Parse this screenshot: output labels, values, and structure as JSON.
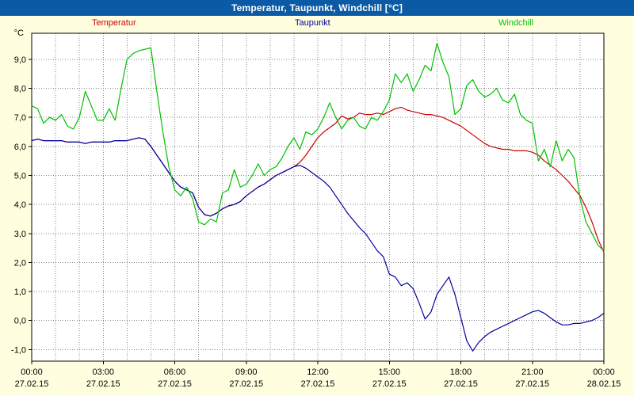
{
  "window": {
    "title": "Temperatur, Taupunkt, Windchill [°C]"
  },
  "colors": {
    "titlebar_bg": "#0b5aa5",
    "titlebar_text": "#ffffff",
    "background": "#ffffe0",
    "plot_background": "#ffffff",
    "grid": "#848484",
    "axis": "#000000",
    "temperatur": "#cc0000",
    "taupunkt": "#0000a0",
    "windchill": "#00c000"
  },
  "chart_data": {
    "type": "line",
    "title": "Temperatur, Taupunkt, Windchill [°C]",
    "grid": "dotted; vertical every hour, horizontal every 1 °C",
    "legend_position": "top, outside plot (Temperatur left red, Taupunkt center blue, Windchill right green)",
    "x_axis": {
      "min_hour": 0,
      "max_hour": 24,
      "step_hours": 0.25,
      "minor_grid_hours": 1,
      "ticks": [
        {
          "hour": 0,
          "time": "00:00",
          "date": "27.02.15"
        },
        {
          "hour": 3,
          "time": "03:00",
          "date": "27.02.15"
        },
        {
          "hour": 6,
          "time": "06:00",
          "date": "27.02.15"
        },
        {
          "hour": 9,
          "time": "09:00",
          "date": "27.02.15"
        },
        {
          "hour": 12,
          "time": "12:00",
          "date": "27.02.15"
        },
        {
          "hour": 15,
          "time": "15:00",
          "date": "27.02.15"
        },
        {
          "hour": 18,
          "time": "18:00",
          "date": "27.02.15"
        },
        {
          "hour": 21,
          "time": "21:00",
          "date": "27.02.15"
        },
        {
          "hour": 24,
          "time": "00:00",
          "date": "28.02.15"
        }
      ]
    },
    "y_axis": {
      "unit_label": "°C",
      "min": -1.4,
      "max": 9.9,
      "ticks": [
        {
          "value": 9,
          "label": "9,0"
        },
        {
          "value": 8,
          "label": "8,0"
        },
        {
          "value": 7,
          "label": "7,0"
        },
        {
          "value": 6,
          "label": "6,0"
        },
        {
          "value": 5,
          "label": "5,0"
        },
        {
          "value": 4,
          "label": "4,0"
        },
        {
          "value": 3,
          "label": "3,0"
        },
        {
          "value": 2,
          "label": "2,0"
        },
        {
          "value": 1,
          "label": "1,0"
        },
        {
          "value": 0,
          "label": "0,0"
        },
        {
          "value": -1,
          "label": "-1,0"
        }
      ]
    },
    "series": [
      {
        "name": "Temperatur",
        "color": "#cc0000",
        "values": [
          6.2,
          6.25,
          6.2,
          6.2,
          6.2,
          6.2,
          6.15,
          6.15,
          6.15,
          6.1,
          6.15,
          6.15,
          6.15,
          6.15,
          6.2,
          6.2,
          6.2,
          6.25,
          6.3,
          6.25,
          6.0,
          5.7,
          5.4,
          5.1,
          4.8,
          4.6,
          4.5,
          4.4,
          3.9,
          3.65,
          3.6,
          3.7,
          3.85,
          3.95,
          4.0,
          4.1,
          4.3,
          4.45,
          4.6,
          4.7,
          4.85,
          5.0,
          5.1,
          5.2,
          5.3,
          5.45,
          5.7,
          6.0,
          6.3,
          6.5,
          6.65,
          6.8,
          7.05,
          6.95,
          7.0,
          7.15,
          7.1,
          7.1,
          7.15,
          7.1,
          7.2,
          7.3,
          7.35,
          7.25,
          7.2,
          7.15,
          7.1,
          7.1,
          7.05,
          7.0,
          6.9,
          6.8,
          6.7,
          6.55,
          6.4,
          6.25,
          6.1,
          6.0,
          5.95,
          5.9,
          5.9,
          5.85,
          5.85,
          5.85,
          5.8,
          5.7,
          5.5,
          5.35,
          5.2,
          5.0,
          4.8,
          4.55,
          4.3,
          3.9,
          3.4,
          2.8,
          2.35
        ]
      },
      {
        "name": "Taupunkt",
        "color": "#0000a0",
        "values": [
          6.2,
          6.25,
          6.2,
          6.2,
          6.2,
          6.2,
          6.15,
          6.15,
          6.15,
          6.1,
          6.15,
          6.15,
          6.15,
          6.15,
          6.2,
          6.2,
          6.2,
          6.25,
          6.3,
          6.25,
          6.0,
          5.7,
          5.4,
          5.1,
          4.8,
          4.6,
          4.5,
          4.4,
          3.9,
          3.65,
          3.6,
          3.7,
          3.85,
          3.95,
          4.0,
          4.1,
          4.3,
          4.45,
          4.6,
          4.7,
          4.85,
          5.0,
          5.1,
          5.2,
          5.3,
          5.35,
          5.25,
          5.1,
          4.95,
          4.8,
          4.6,
          4.3,
          4.0,
          3.7,
          3.45,
          3.2,
          3.0,
          2.7,
          2.4,
          2.2,
          1.6,
          1.5,
          1.2,
          1.3,
          1.1,
          0.6,
          0.05,
          0.3,
          0.9,
          1.2,
          1.5,
          0.9,
          0.1,
          -0.7,
          -1.05,
          -0.75,
          -0.55,
          -0.4,
          -0.3,
          -0.2,
          -0.1,
          0.0,
          0.1,
          0.2,
          0.3,
          0.35,
          0.25,
          0.1,
          -0.05,
          -0.15,
          -0.15,
          -0.1,
          -0.1,
          -0.05,
          0.0,
          0.1,
          0.25
        ]
      },
      {
        "name": "Windchill",
        "color": "#00c000",
        "values": [
          7.4,
          7.3,
          6.8,
          7.0,
          6.9,
          7.1,
          6.7,
          6.6,
          7.0,
          7.9,
          7.4,
          6.9,
          6.9,
          7.3,
          6.9,
          8.0,
          9.0,
          9.2,
          9.3,
          9.35,
          9.4,
          7.9,
          6.5,
          5.3,
          4.5,
          4.3,
          4.6,
          4.2,
          3.4,
          3.3,
          3.5,
          3.4,
          4.4,
          4.5,
          5.2,
          4.6,
          4.7,
          5.0,
          5.4,
          5.0,
          5.2,
          5.3,
          5.6,
          6.0,
          6.3,
          5.9,
          6.5,
          6.4,
          6.6,
          7.0,
          7.5,
          7.0,
          6.6,
          6.9,
          7.0,
          6.7,
          6.6,
          7.0,
          6.9,
          7.2,
          7.6,
          8.5,
          8.2,
          8.5,
          7.9,
          8.3,
          8.8,
          8.6,
          9.55,
          8.9,
          8.4,
          7.1,
          7.3,
          8.1,
          8.3,
          7.9,
          7.7,
          7.8,
          8.0,
          7.6,
          7.5,
          7.8,
          7.1,
          6.9,
          6.8,
          5.5,
          5.9,
          5.3,
          6.2,
          5.5,
          5.9,
          5.6,
          4.2,
          3.4,
          3.0,
          2.6,
          2.4
        ]
      }
    ]
  }
}
